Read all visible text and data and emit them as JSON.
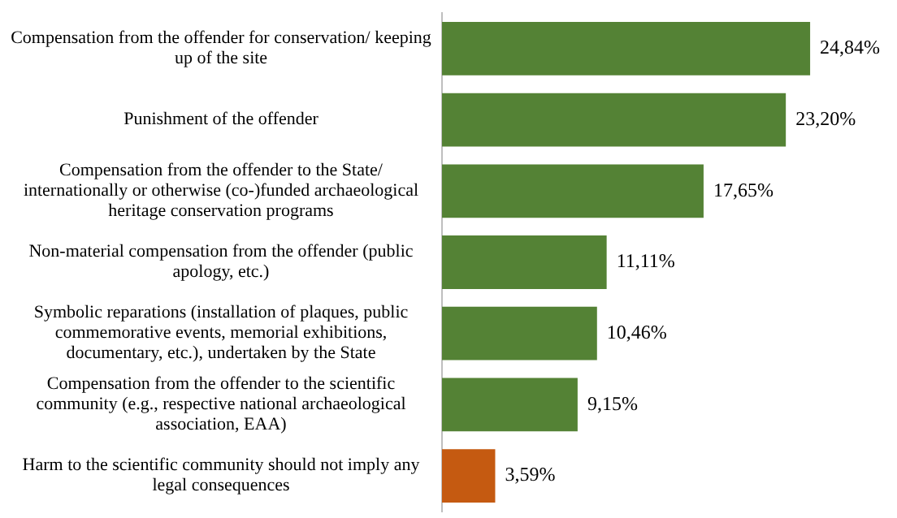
{
  "chart_data": {
    "type": "bar",
    "orientation": "horizontal",
    "categories": [
      "Compensation from the offender for conservation/ keeping up of the site",
      "Punishment of the offender",
      "Compensation from the offender to the State/ internationally or otherwise (co-)funded archaeological heritage conservation programs",
      "Non-material compensation from the offender (public apology, etc.)",
      "Symbolic reparations (installation of plaques, public commemorative events, memorial exhibitions, documentary, etc.), undertaken by the State",
      "Compensation from the offender to the scientific community (e.g., respective national archaeological association, EAA)",
      "Harm to the scientific community should not imply any legal consequences"
    ],
    "values": [
      24.84,
      23.2,
      17.65,
      11.11,
      10.46,
      9.15,
      3.59
    ],
    "value_labels": [
      "24,84%",
      "23,20%",
      "17,65%",
      "11,11%",
      "10,46%",
      "9,15%",
      "3,59%"
    ],
    "colors": [
      "#548235",
      "#548235",
      "#548235",
      "#548235",
      "#548235",
      "#548235",
      "#c55a11"
    ],
    "grid": false,
    "legend": false
  }
}
